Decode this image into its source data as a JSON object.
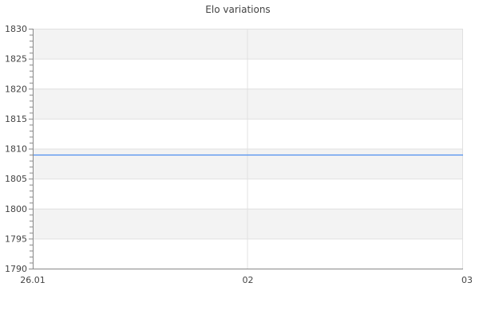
{
  "chart_data": {
    "type": "line",
    "title": "Elo variations",
    "xlabel": "",
    "ylabel": "",
    "x_tick_labels": [
      "26.01",
      "02",
      "03"
    ],
    "y_ticks": [
      1790,
      1795,
      1800,
      1805,
      1810,
      1815,
      1820,
      1825,
      1830
    ],
    "ylim": [
      1790,
      1830
    ],
    "y_minor_tick_step": 1,
    "grid": true,
    "alternating_bands": true,
    "series": [
      {
        "x": [
          "26.01",
          "03"
        ],
        "values": [
          1809,
          1809
        ],
        "color": "#4a8cf0"
      }
    ],
    "colors": {
      "band": "#f3f3f3",
      "grid": "#e0e0e0",
      "axis": "#888888"
    }
  }
}
